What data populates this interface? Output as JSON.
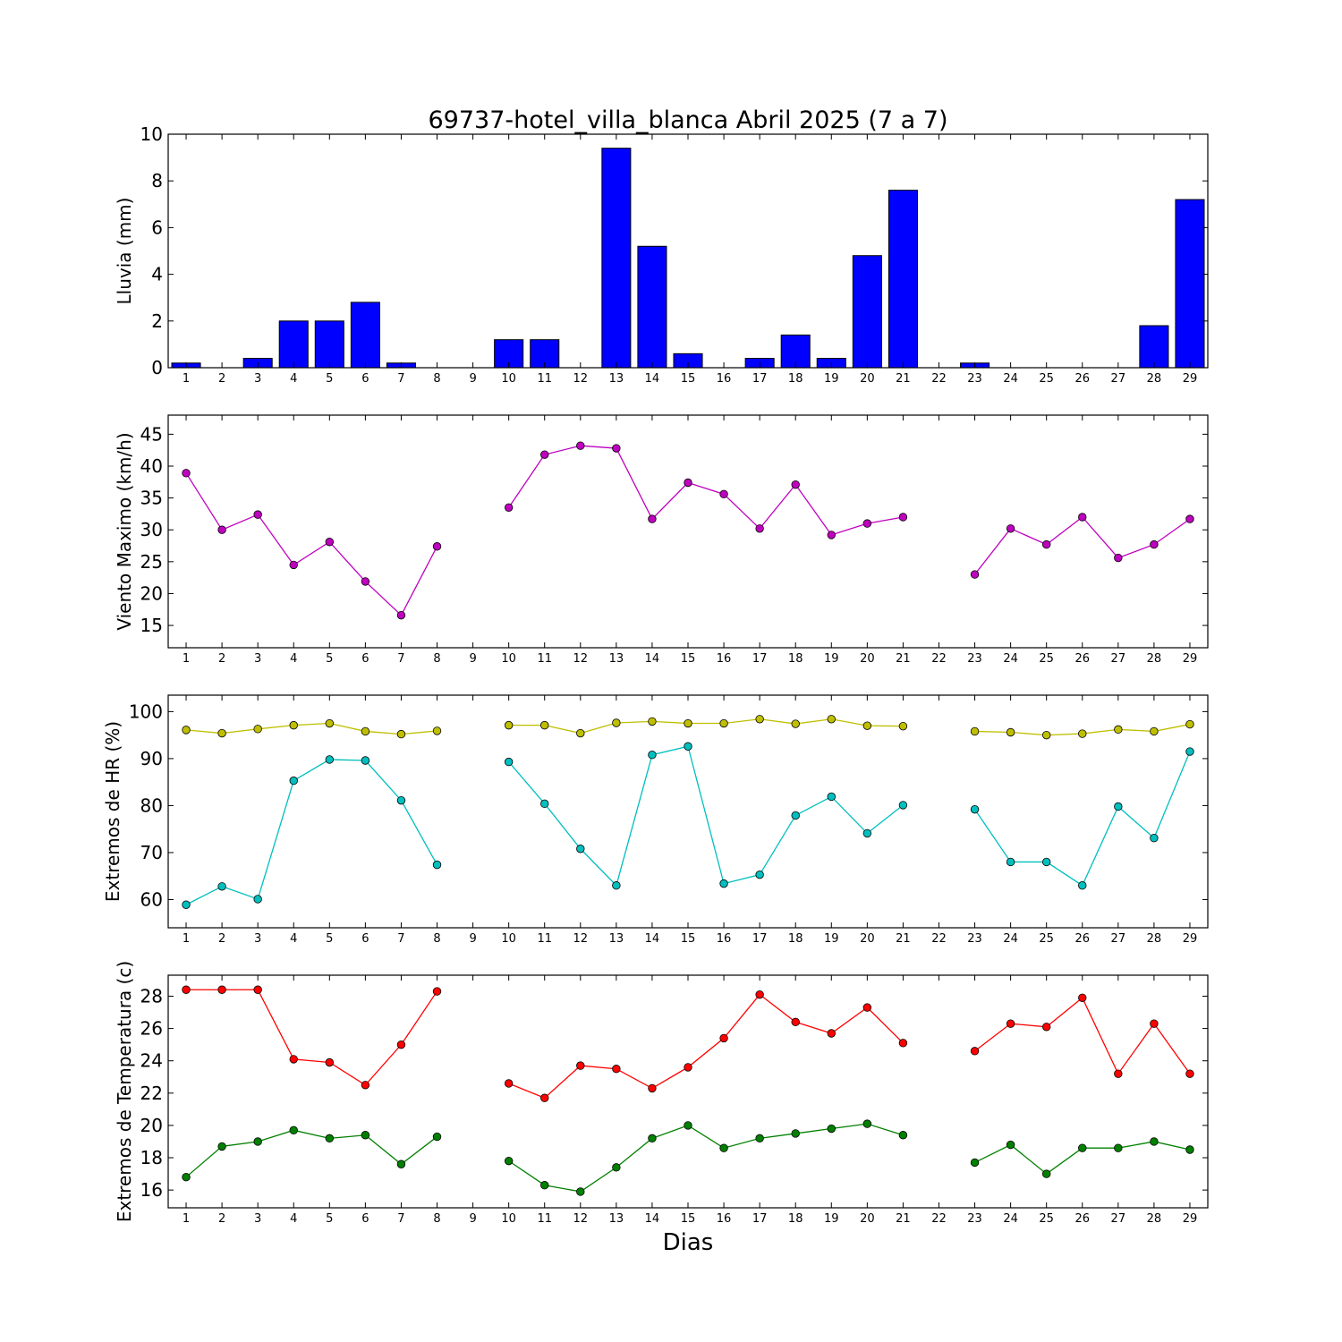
{
  "chart_data": [
    {
      "type": "bar",
      "title": "69737-hotel_villa_blanca Abril 2025  (7 a 7)",
      "ylabel": "Lluvia (mm)",
      "xlabel": "",
      "categories": [
        "1",
        "2",
        "3",
        "4",
        "5",
        "6",
        "7",
        "8",
        "9",
        "10",
        "11",
        "12",
        "13",
        "14",
        "15",
        "16",
        "17",
        "18",
        "19",
        "20",
        "21",
        "22",
        "23",
        "24",
        "25",
        "26",
        "27",
        "28",
        "29"
      ],
      "series": [
        {
          "color": "#0000ff",
          "values": [
            0.2,
            0,
            0.4,
            2.0,
            2.0,
            2.8,
            0.2,
            0,
            0,
            1.2,
            1.2,
            0,
            9.4,
            5.2,
            0.6,
            0,
            0.4,
            1.4,
            0.4,
            4.8,
            7.6,
            0,
            0.2,
            0,
            0,
            0,
            0,
            1.8,
            7.2
          ]
        }
      ],
      "ylim": [
        0,
        10
      ],
      "yticks": [
        0,
        2,
        4,
        6,
        8,
        10
      ],
      "grid": false
    },
    {
      "type": "line",
      "title": "",
      "ylabel": "Viento Maximo (km/h)",
      "xlabel": "",
      "categories": [
        "1",
        "2",
        "3",
        "4",
        "5",
        "6",
        "7",
        "8",
        "9",
        "10",
        "11",
        "12",
        "13",
        "14",
        "15",
        "16",
        "17",
        "18",
        "19",
        "20",
        "21",
        "22",
        "23",
        "24",
        "25",
        "26",
        "27",
        "28",
        "29"
      ],
      "series": [
        {
          "color": "#bf00bf",
          "values": [
            38.9,
            30.0,
            32.4,
            24.5,
            28.1,
            21.9,
            16.6,
            27.4,
            null,
            33.5,
            41.8,
            43.2,
            42.8,
            31.7,
            37.4,
            35.6,
            30.2,
            37.1,
            29.2,
            31.0,
            32.0,
            null,
            23.0,
            30.2,
            27.7,
            32.0,
            25.6,
            27.7,
            31.7
          ]
        }
      ],
      "ylim": [
        11.5,
        48
      ],
      "yticks": [
        15,
        20,
        25,
        30,
        35,
        40,
        45
      ],
      "grid": false
    },
    {
      "type": "line",
      "title": "",
      "ylabel": "Extremos de HR (%)",
      "xlabel": "",
      "categories": [
        "1",
        "2",
        "3",
        "4",
        "5",
        "6",
        "7",
        "8",
        "9",
        "10",
        "11",
        "12",
        "13",
        "14",
        "15",
        "16",
        "17",
        "18",
        "19",
        "20",
        "21",
        "22",
        "23",
        "24",
        "25",
        "26",
        "27",
        "28",
        "29"
      ],
      "series": [
        {
          "color": "#bfbf00",
          "values": [
            96.1,
            95.4,
            96.3,
            97.1,
            97.5,
            95.8,
            95.2,
            95.9,
            null,
            97.1,
            97.1,
            95.4,
            97.6,
            97.9,
            97.5,
            97.5,
            98.4,
            97.4,
            98.4,
            97.0,
            96.9,
            null,
            95.8,
            95.6,
            95.0,
            95.3,
            96.2,
            95.8,
            97.3
          ]
        },
        {
          "color": "#00bfbf",
          "values": [
            58.9,
            62.8,
            60.1,
            85.3,
            89.8,
            89.6,
            81.1,
            67.4,
            null,
            89.3,
            80.4,
            70.8,
            63.0,
            90.8,
            92.6,
            63.4,
            65.3,
            77.9,
            81.9,
            74.1,
            80.1,
            null,
            79.2,
            68.0,
            68.0,
            63.0,
            79.8,
            73.1,
            91.5
          ]
        }
      ],
      "ylim": [
        54,
        103.5
      ],
      "yticks": [
        60,
        70,
        80,
        90,
        100
      ],
      "grid": false
    },
    {
      "type": "line",
      "title": "",
      "ylabel": "Extremos de Temperatura (c)",
      "xlabel": "Dias",
      "categories": [
        "1",
        "2",
        "3",
        "4",
        "5",
        "6",
        "7",
        "8",
        "9",
        "10",
        "11",
        "12",
        "13",
        "14",
        "15",
        "16",
        "17",
        "18",
        "19",
        "20",
        "21",
        "22",
        "23",
        "24",
        "25",
        "26",
        "27",
        "28",
        "29"
      ],
      "series": [
        {
          "color": "#ff0000",
          "values": [
            28.4,
            28.4,
            28.4,
            24.1,
            23.9,
            22.5,
            25.0,
            28.3,
            null,
            22.6,
            21.7,
            23.7,
            23.5,
            22.3,
            23.6,
            25.4,
            28.1,
            26.4,
            25.7,
            27.3,
            25.1,
            null,
            24.6,
            26.3,
            26.1,
            27.9,
            23.2,
            26.3,
            23.2
          ]
        },
        {
          "color": "#008000",
          "values": [
            16.8,
            18.7,
            19.0,
            19.7,
            19.2,
            19.4,
            17.6,
            19.3,
            null,
            17.8,
            16.3,
            15.9,
            17.4,
            19.2,
            20.0,
            18.6,
            19.2,
            19.5,
            19.8,
            20.1,
            19.4,
            null,
            17.7,
            18.8,
            17.0,
            18.6,
            18.6,
            19.0,
            18.5
          ]
        }
      ],
      "ylim": [
        14.9,
        29.3
      ],
      "yticks": [
        16,
        18,
        20,
        22,
        24,
        26,
        28
      ],
      "grid": false
    }
  ]
}
